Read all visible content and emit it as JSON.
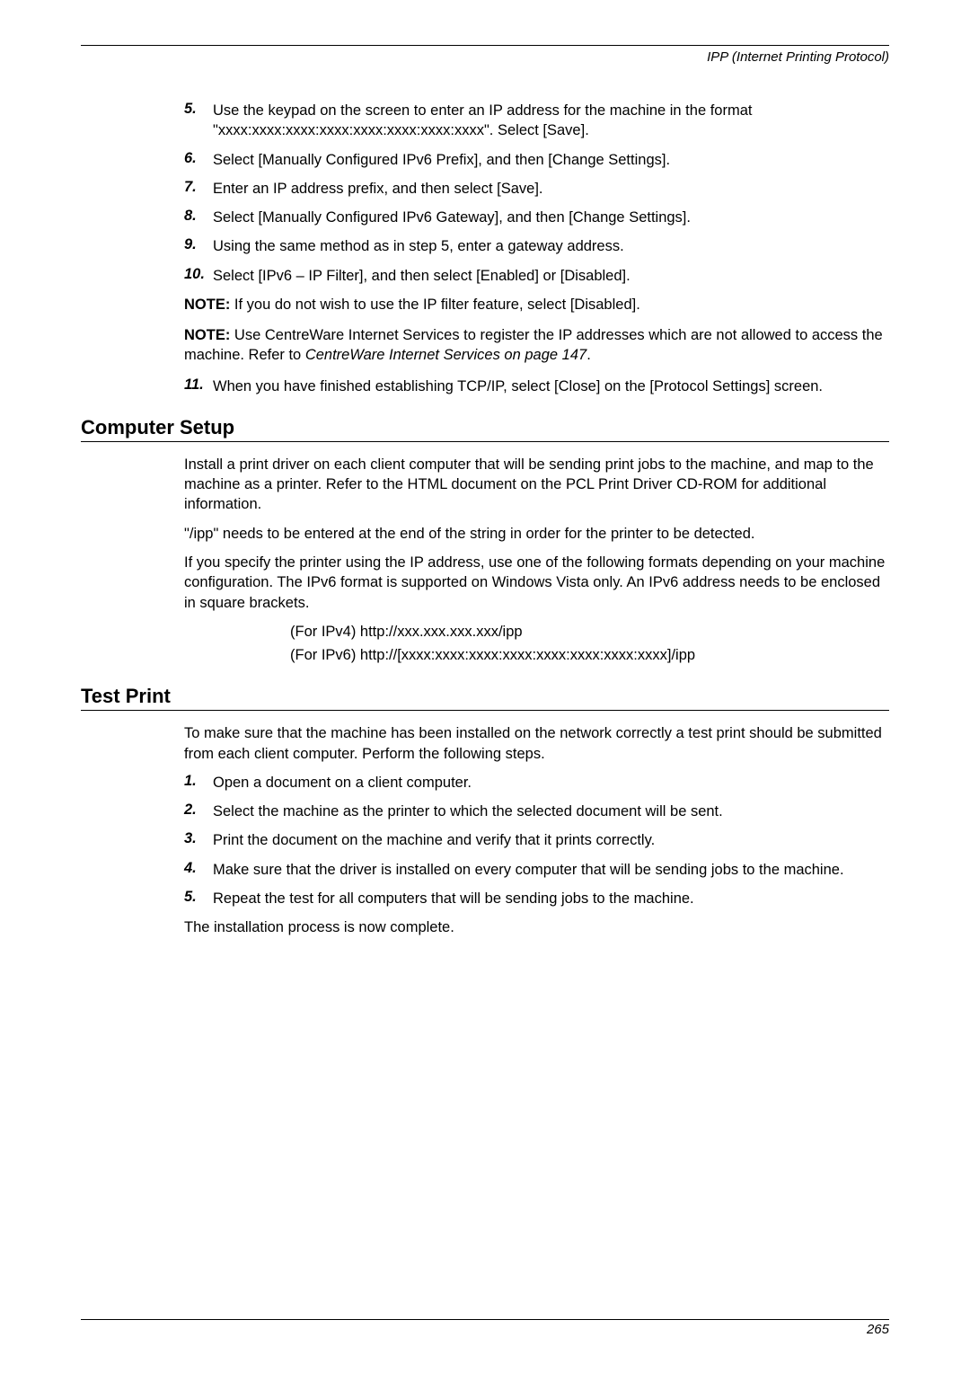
{
  "header": {
    "title": "IPP (Internet Printing Protocol)"
  },
  "list1": {
    "items": [
      {
        "num": "5.",
        "text": "Use the keypad on the screen to enter an IP address for the machine in the format \"xxxx:xxxx:xxxx:xxxx:xxxx:xxxx:xxxx:xxxx\". Select [Save]."
      },
      {
        "num": "6.",
        "text": "Select [Manually Configured IPv6 Prefix], and then [Change Settings]."
      },
      {
        "num": "7.",
        "text": "Enter an IP address prefix, and then select [Save]."
      },
      {
        "num": "8.",
        "text": "Select [Manually Configured IPv6 Gateway], and then [Change Settings]."
      },
      {
        "num": "9.",
        "text": "Using the same method as in step 5, enter a gateway address."
      },
      {
        "num": "10.",
        "text": "Select [IPv6 – IP Filter], and then select [Enabled] or [Disabled]."
      }
    ]
  },
  "notes": {
    "note1_label": "NOTE:",
    "note1_text": " If you do not wish to use the IP filter feature, select [Disabled].",
    "note2_label": "NOTE:",
    "note2_text_a": " Use CentreWare Internet Services to register the IP addresses which are not allowed to access the machine. Refer to ",
    "note2_text_b": "CentreWare Internet Services on page 147",
    "note2_text_c": "."
  },
  "list2": {
    "items": [
      {
        "num": "11.",
        "text": "When you have finished establishing TCP/IP, select [Close] on the [Protocol Settings] screen."
      }
    ]
  },
  "section_computer": {
    "heading": "Computer Setup",
    "p1": "Install a print driver on each client computer that will be sending print jobs to the machine, and map to the machine as a printer. Refer to the HTML document on the PCL Print Driver CD-ROM for additional information.",
    "p2": "\"/ipp\" needs to be entered at the end of the string in order for the printer to be detected.",
    "p3": "If you specify the printer using the IP address, use one of the following formats depending on your machine configuration. The IPv6 format is supported on Windows Vista only. An IPv6 address needs to be enclosed in square brackets.",
    "line1": "(For IPv4) http://xxx.xxx.xxx.xxx/ipp",
    "line2": "(For IPv6) http://[xxxx:xxxx:xxxx:xxxx:xxxx:xxxx:xxxx:xxxx]/ipp"
  },
  "section_test": {
    "heading": "Test Print",
    "p1": "To make sure that the machine has been installed on the network correctly a test print should be submitted from each client computer. Perform the following steps.",
    "items": [
      {
        "num": "1.",
        "text": "Open a document on a client computer."
      },
      {
        "num": "2.",
        "text": "Select the machine as the printer to which the selected document will be sent."
      },
      {
        "num": "3.",
        "text": "Print the document on the machine and verify that it prints correctly."
      },
      {
        "num": "4.",
        "text": "Make sure that the driver is installed on every computer that will be sending jobs to the machine."
      },
      {
        "num": "5.",
        "text": "Repeat the test for all computers that will be sending jobs to the machine."
      }
    ],
    "p2": "The installation process is now complete."
  },
  "footer": {
    "page": "265"
  }
}
